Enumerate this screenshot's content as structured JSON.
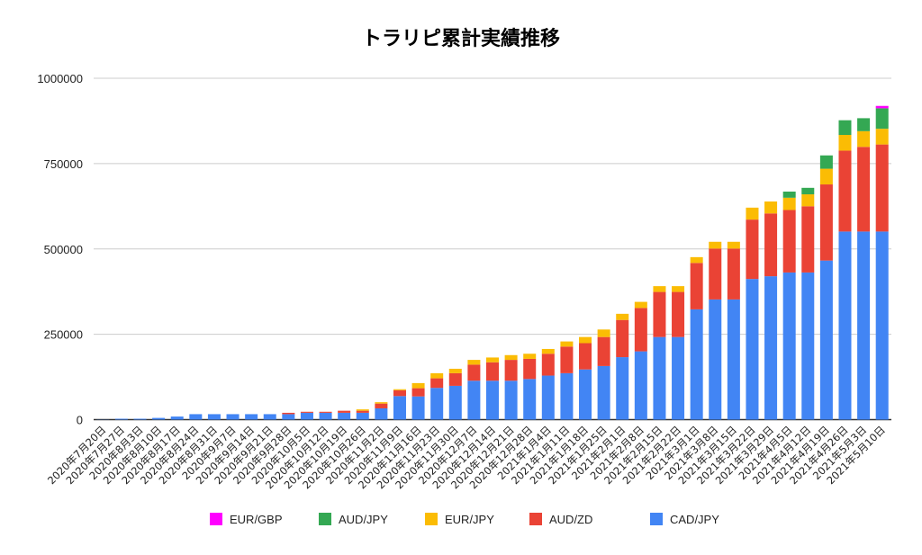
{
  "chart_data": {
    "type": "bar",
    "stacked": true,
    "title": "トラリピ累計実績推移",
    "xlabel": "",
    "ylabel": "",
    "ylim": [
      0,
      1000000
    ],
    "yticks": [
      "0",
      "250000",
      "500000",
      "750000",
      "1000000"
    ],
    "grid": true,
    "legend_position": "bottom",
    "categories": [
      "2020年7月20日",
      "2020年7月27日",
      "2020年8月3日",
      "2020年8月10日",
      "2020年8月17日",
      "2020年8月24日",
      "2020年8月31日",
      "2020年9月7日",
      "2020年9月14日",
      "2020年9月21日",
      "2020年9月28日",
      "2020年10月5日",
      "2020年10月12日",
      "2020年10月19日",
      "2020年10月26日",
      "2020年11月2日",
      "2020年11月9日",
      "2020年11月16日",
      "2020年11月23日",
      "2020年11月30日",
      "2020年12月7日",
      "2020年12月14日",
      "2020年12月21日",
      "2020年12月28日",
      "2021年1月4日",
      "2021年1月11日",
      "2021年1月18日",
      "2021年1月25日",
      "2021年2月1日",
      "2021年2月8日",
      "2021年2月15日",
      "2021年2月22日",
      "2021年3月1日",
      "2021年3月8日",
      "2021年3月15日",
      "2021年3月22日",
      "2021年3月29日",
      "2021年4月5日",
      "2021年4月12日",
      "2021年4月19日",
      "2021年4月26日",
      "2021年5月3日",
      "2021年5月10日"
    ],
    "series": [
      {
        "name": "CAD/JPY",
        "color": "#4285f4",
        "values": [
          500,
          2600,
          2600,
          5000,
          9000,
          16000,
          16000,
          16000,
          16000,
          16000,
          16000,
          20000,
          20000,
          20000,
          20000,
          33000,
          69000,
          68000,
          93000,
          99000,
          114000,
          114000,
          114000,
          119000,
          129000,
          136000,
          147000,
          157000,
          183000,
          200000,
          242000,
          242000,
          323000,
          352000,
          352000,
          412000,
          420000,
          431000,
          431000,
          466000,
          551000,
          551000,
          551000
        ]
      },
      {
        "name": "AUD/ZD",
        "color": "#ea4335",
        "values": [
          0,
          0,
          0,
          0,
          0,
          0,
          0,
          0,
          0,
          0,
          4000,
          3000,
          3000,
          6000,
          6000,
          14000,
          17000,
          24000,
          28000,
          37000,
          47000,
          54000,
          61000,
          59000,
          64000,
          78000,
          77000,
          85000,
          109000,
          127000,
          132000,
          132000,
          136000,
          149000,
          149000,
          174000,
          184000,
          183000,
          194000,
          223000,
          237000,
          248000,
          255000
        ]
      },
      {
        "name": "EUR/JPY",
        "color": "#fbbc04",
        "values": [
          0,
          0,
          0,
          0,
          0,
          0,
          0,
          0,
          0,
          0,
          0,
          0,
          0,
          0,
          4000,
          4000,
          3000,
          15000,
          15000,
          13000,
          14000,
          14000,
          14000,
          15000,
          14000,
          15000,
          18000,
          22000,
          18000,
          18000,
          17000,
          17000,
          17000,
          20000,
          20000,
          35000,
          35000,
          36000,
          35000,
          46000,
          46000,
          46000,
          46000
        ]
      },
      {
        "name": "AUD/JPY",
        "color": "#34a853",
        "values": [
          0,
          0,
          0,
          0,
          0,
          0,
          0,
          0,
          0,
          0,
          0,
          0,
          0,
          0,
          0,
          0,
          0,
          0,
          0,
          0,
          0,
          0,
          0,
          0,
          0,
          0,
          0,
          0,
          0,
          0,
          0,
          0,
          0,
          0,
          0,
          0,
          0,
          18000,
          19000,
          39000,
          43000,
          38000,
          60000
        ]
      },
      {
        "name": "EUR/GBP",
        "color": "#ff00ff",
        "values": [
          0,
          0,
          0,
          0,
          0,
          0,
          0,
          0,
          0,
          0,
          0,
          0,
          0,
          0,
          0,
          0,
          0,
          0,
          0,
          0,
          0,
          0,
          0,
          0,
          0,
          0,
          0,
          0,
          0,
          0,
          0,
          0,
          0,
          0,
          0,
          0,
          0,
          0,
          0,
          0,
          0,
          0,
          7000
        ]
      }
    ],
    "legend_order": [
      "EUR/GBP",
      "AUD/JPY",
      "EUR/JPY",
      "AUD/ZD",
      "CAD/JPY"
    ]
  }
}
